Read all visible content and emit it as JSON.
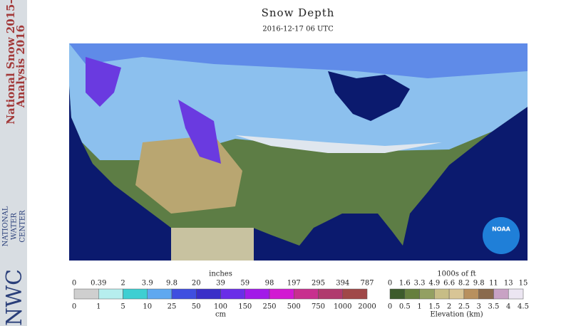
{
  "sidebar": {
    "line1": "National Snow 2015-",
    "line2": "Analysis 2016",
    "logo": "NWC",
    "org": [
      "NATIONAL",
      "WATER",
      "CENTER"
    ]
  },
  "header": {
    "title": "Snow Depth",
    "date": "2016-12-17 06 UTC"
  },
  "map": {
    "logo": "NOAA"
  },
  "snow_legend": {
    "top_unit": "inches",
    "bottom_unit": "cm",
    "top_labels": [
      "0",
      "0.39",
      "2",
      "3.9",
      "9.8",
      "20",
      "39",
      "59",
      "98",
      "197",
      "295",
      "394",
      "787"
    ],
    "bottom_labels": [
      "0",
      "1",
      "5",
      "10",
      "25",
      "50",
      "100",
      "150",
      "250",
      "500",
      "750",
      "1000",
      "2000"
    ],
    "colors": [
      "#cfcfcf",
      "#b6eeee",
      "#3ecfd2",
      "#5fa8f0",
      "#3f4fe0",
      "#3a2fc8",
      "#6a2ee8",
      "#a21ae8",
      "#d21ad2",
      "#c8308e",
      "#b03a6e",
      "#a04848"
    ]
  },
  "elevation_legend": {
    "top_unit": "1000s of ft",
    "bottom_unit": "Elevation (km)",
    "top_labels": [
      "0",
      "1.6",
      "3.3",
      "4.9",
      "6.6",
      "8.2",
      "9.8",
      "11",
      "13",
      "15"
    ],
    "bottom_labels": [
      "0",
      "0.5",
      "1",
      "1.5",
      "2",
      "2.5",
      "3",
      "3.5",
      "4",
      "4.5"
    ],
    "colors": [
      "#3d5b2c",
      "#667f3e",
      "#93a062",
      "#c7bd86",
      "#d8c596",
      "#b8905e",
      "#8a6a4c",
      "#c8a2c4",
      "#ece6f2"
    ]
  }
}
